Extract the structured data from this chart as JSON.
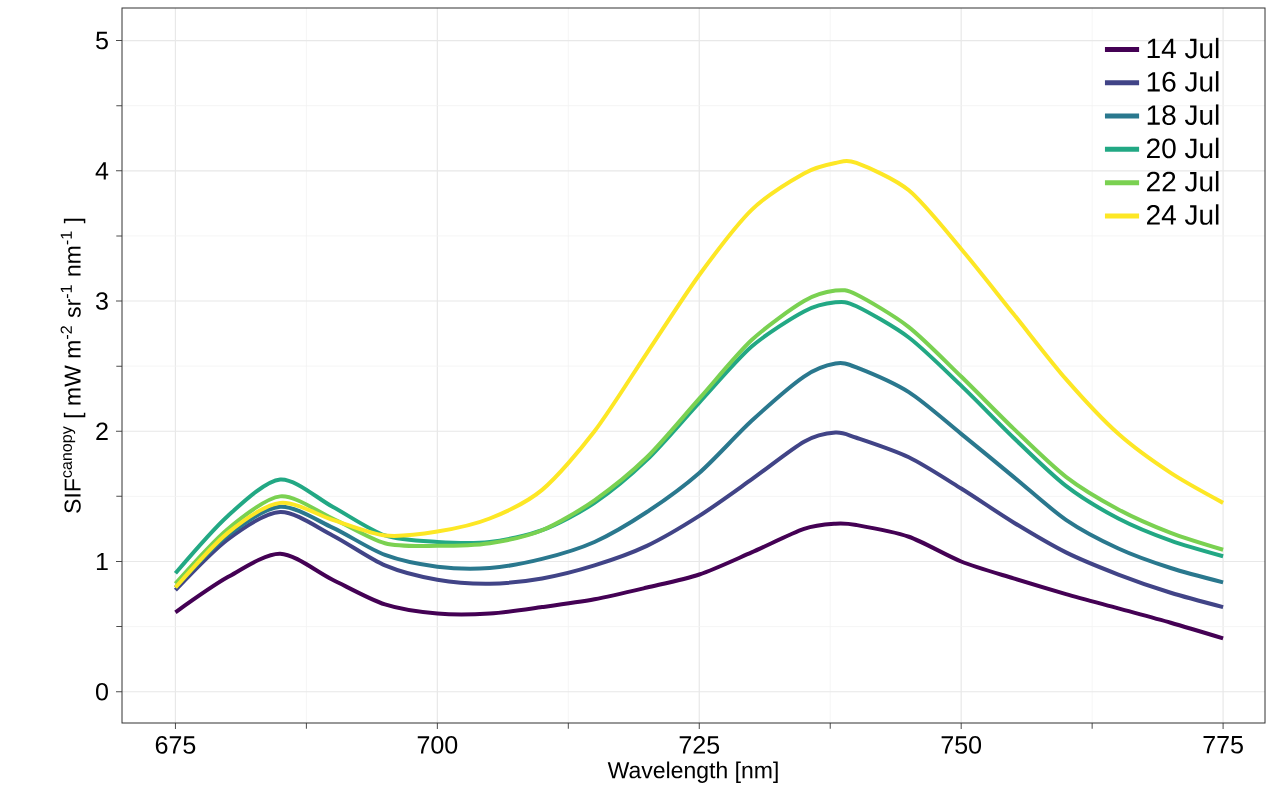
{
  "chart_data": {
    "type": "line",
    "xlabel": "Wavelength [nm]",
    "ylabel": "SIF$^{canopy}$ [ mW m$^{-2}$ sr$^{-1}$ nm$^{-1}$ ]",
    "x": [
      675,
      680,
      685,
      690,
      695,
      700,
      705,
      710,
      715,
      720,
      725,
      730,
      735,
      738,
      740,
      745,
      750,
      755,
      760,
      765,
      770,
      775
    ],
    "series": [
      {
        "name": "14 Jul",
        "color": "#440154",
        "values": [
          0.61,
          0.88,
          1.06,
          0.86,
          0.67,
          0.6,
          0.6,
          0.65,
          0.71,
          0.8,
          0.9,
          1.07,
          1.25,
          1.29,
          1.28,
          1.19,
          1.0,
          0.87,
          0.75,
          0.64,
          0.53,
          0.41
        ]
      },
      {
        "name": "16 Jul",
        "color": "#414487",
        "values": [
          0.78,
          1.17,
          1.38,
          1.2,
          0.97,
          0.86,
          0.83,
          0.87,
          0.97,
          1.12,
          1.35,
          1.63,
          1.92,
          1.99,
          1.95,
          1.8,
          1.56,
          1.3,
          1.07,
          0.9,
          0.76,
          0.65
        ]
      },
      {
        "name": "18 Jul",
        "color": "#2A788E",
        "values": [
          0.8,
          1.2,
          1.42,
          1.26,
          1.05,
          0.96,
          0.95,
          1.02,
          1.15,
          1.38,
          1.68,
          2.08,
          2.42,
          2.52,
          2.49,
          2.3,
          1.98,
          1.65,
          1.32,
          1.1,
          0.95,
          0.84
        ]
      },
      {
        "name": "20 Jul",
        "color": "#22A884",
        "values": [
          0.91,
          1.35,
          1.63,
          1.42,
          1.2,
          1.15,
          1.15,
          1.24,
          1.45,
          1.78,
          2.22,
          2.65,
          2.92,
          2.99,
          2.96,
          2.72,
          2.35,
          1.95,
          1.58,
          1.33,
          1.16,
          1.04
        ]
      },
      {
        "name": "22 Jul",
        "color": "#7AD151",
        "values": [
          0.83,
          1.25,
          1.5,
          1.33,
          1.14,
          1.12,
          1.14,
          1.24,
          1.47,
          1.8,
          2.25,
          2.7,
          3.0,
          3.08,
          3.05,
          2.8,
          2.42,
          2.02,
          1.65,
          1.4,
          1.22,
          1.09
        ]
      },
      {
        "name": "24 Jul",
        "color": "#FDE725",
        "values": [
          0.8,
          1.22,
          1.45,
          1.32,
          1.2,
          1.23,
          1.33,
          1.55,
          2.0,
          2.6,
          3.2,
          3.7,
          3.98,
          4.06,
          4.06,
          3.85,
          3.4,
          2.9,
          2.4,
          1.98,
          1.68,
          1.45
        ]
      }
    ],
    "xlim": [
      669.9,
      779
    ],
    "ylim": [
      -0.24,
      5.25
    ],
    "xticks": [
      675,
      700,
      725,
      750,
      775
    ],
    "yticks": [
      0,
      1,
      2,
      3,
      4,
      5
    ],
    "grid": true,
    "legend": "top right",
    "line_style": "solid",
    "marker": "none"
  }
}
